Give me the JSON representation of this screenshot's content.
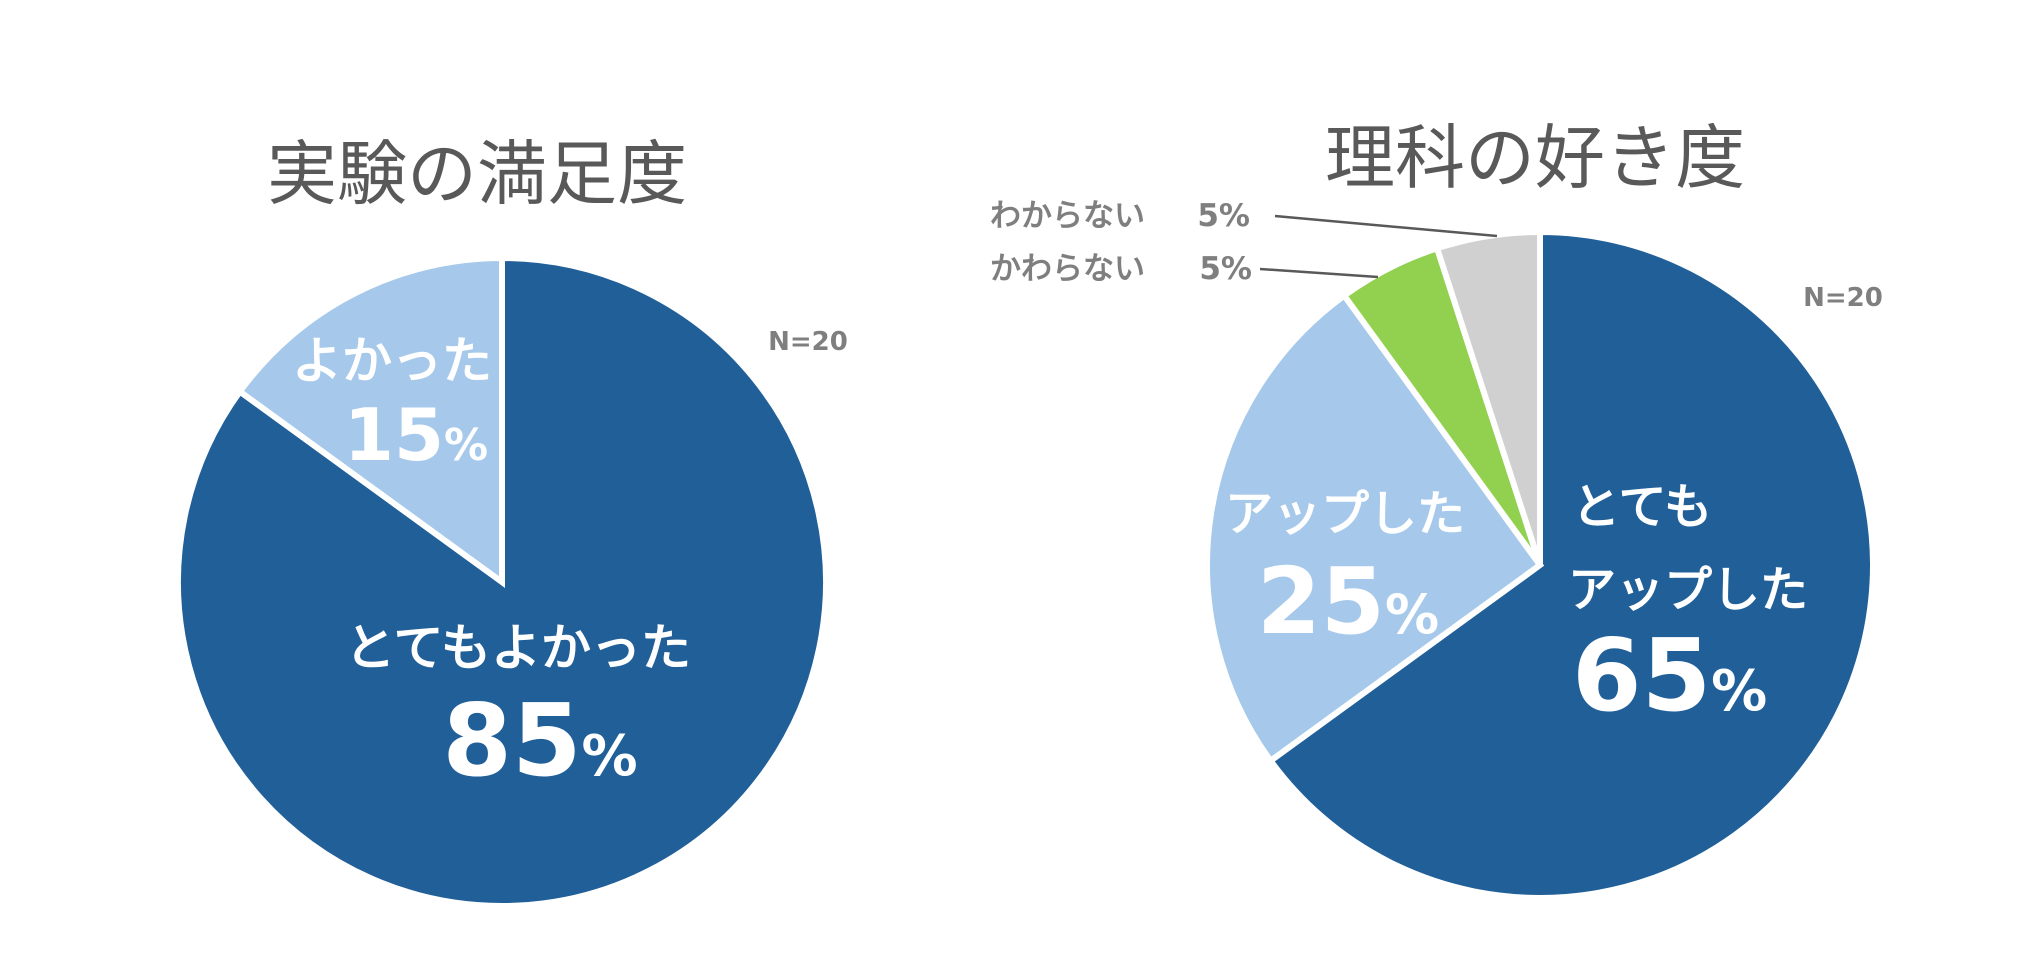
{
  "chart_data": [
    {
      "type": "pie",
      "title": "実験の満足度",
      "note": "N=20",
      "slices": [
        {
          "label": "とてもよかった",
          "value": 85,
          "value_label": "85",
          "unit": "%",
          "color": "#215f99"
        },
        {
          "label": "よかった",
          "value": 15,
          "value_label": "15",
          "unit": "%",
          "color": "#a6c9eb"
        }
      ]
    },
    {
      "type": "pie",
      "title": "理科の好き度",
      "note": "N=20",
      "slices": [
        {
          "label": "とても",
          "label2": "アップした",
          "value": 65,
          "value_label": "65",
          "unit": "%",
          "color": "#215f99"
        },
        {
          "label": "アップした",
          "value": 25,
          "value_label": "25",
          "unit": "%",
          "color": "#a6c9eb"
        },
        {
          "label": "かわらない",
          "value": 5,
          "value_label": "5%",
          "color": "#92d050"
        },
        {
          "label": "わからない",
          "value": 5,
          "value_label": "5%",
          "color": "#d0d0d0"
        }
      ]
    }
  ]
}
